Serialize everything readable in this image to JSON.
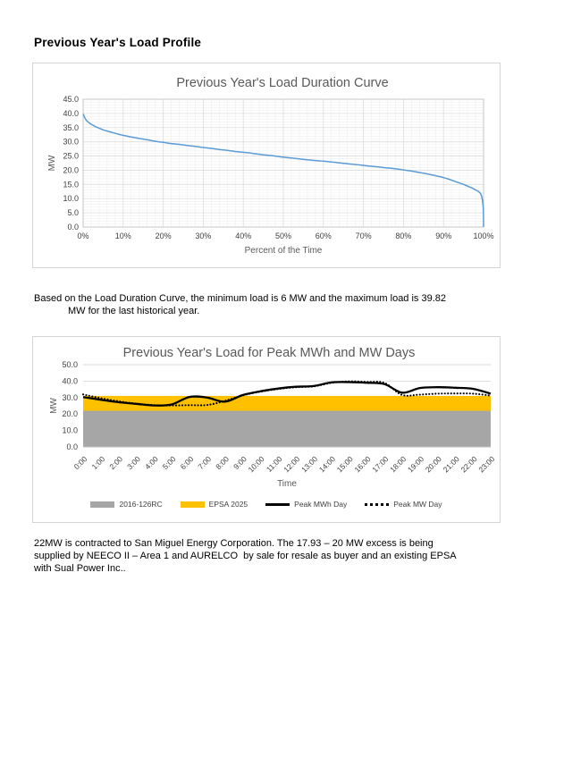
{
  "page": {
    "title": "Previous Year's Load Profile"
  },
  "paragraphs": {
    "p1_lines": [
      "Based on the Load Duration Curve, the minimum load is 6 MW and the maximum load is 39.82",
      "MW for the last historical year."
    ],
    "p2_lines": [
      "22MW is contracted to San Miguel Energy Corporation. The 17.93 – 20 MW excess is being",
      "supplied by NEECO II – Area 1 and AURELCO  by sale for resale as buyer and an existing EPSA",
      "with Sual Power Inc.."
    ]
  },
  "chart_data": [
    {
      "type": "line",
      "title": "Previous Year's Load Duration Curve",
      "xlabel": "Percent of the Time",
      "ylabel": "MW",
      "xlim": [
        0,
        100
      ],
      "ylim": [
        0,
        45
      ],
      "yticks": [
        "45.0",
        "40.0",
        "35.0",
        "30.0",
        "25.0",
        "20.0",
        "15.0",
        "10.0",
        "5.0",
        "0.0"
      ],
      "xticks": [
        "0%",
        "10%",
        "20%",
        "30%",
        "40%",
        "50%",
        "60%",
        "70%",
        "80%",
        "90%",
        "100%"
      ],
      "grid": "major and minor, both axes",
      "legend_position": "none",
      "line_color": "#5B9BD5",
      "min_load_mw": 6,
      "max_load_mw": 39.82,
      "points_pct_mw": [
        [
          0,
          39.82
        ],
        [
          0.3,
          38.9
        ],
        [
          0.6,
          38.0
        ],
        [
          1,
          37.3
        ],
        [
          1.5,
          36.7
        ],
        [
          2,
          36.2
        ],
        [
          2.5,
          35.8
        ],
        [
          3,
          35.4
        ],
        [
          3.5,
          35.1
        ],
        [
          4,
          34.8
        ],
        [
          5,
          34.2
        ],
        [
          6,
          33.8
        ],
        [
          7,
          33.4
        ],
        [
          8,
          33.0
        ],
        [
          9,
          32.6
        ],
        [
          10,
          32.3
        ],
        [
          12,
          31.7
        ],
        [
          14,
          31.2
        ],
        [
          16,
          30.7
        ],
        [
          18,
          30.2
        ],
        [
          20,
          29.8
        ],
        [
          22,
          29.4
        ],
        [
          24,
          29.1
        ],
        [
          26,
          28.7
        ],
        [
          28,
          28.4
        ],
        [
          30,
          28.0
        ],
        [
          32,
          27.7
        ],
        [
          34,
          27.3
        ],
        [
          36,
          27.0
        ],
        [
          38,
          26.6
        ],
        [
          40,
          26.3
        ],
        [
          42,
          26.0
        ],
        [
          44,
          25.6
        ],
        [
          46,
          25.3
        ],
        [
          48,
          25.0
        ],
        [
          50,
          24.6
        ],
        [
          52,
          24.3
        ],
        [
          54,
          24.0
        ],
        [
          56,
          23.7
        ],
        [
          58,
          23.4
        ],
        [
          60,
          23.2
        ],
        [
          62,
          22.9
        ],
        [
          64,
          22.6
        ],
        [
          66,
          22.3
        ],
        [
          68,
          22.0
        ],
        [
          70,
          21.7
        ],
        [
          72,
          21.4
        ],
        [
          74,
          21.1
        ],
        [
          76,
          20.8
        ],
        [
          78,
          20.5
        ],
        [
          80,
          20.1
        ],
        [
          82,
          19.7
        ],
        [
          84,
          19.2
        ],
        [
          86,
          18.7
        ],
        [
          88,
          18.1
        ],
        [
          90,
          17.4
        ],
        [
          91,
          17.0
        ],
        [
          92,
          16.5
        ],
        [
          93,
          16.0
        ],
        [
          94,
          15.5
        ],
        [
          95,
          15.0
        ],
        [
          96,
          14.4
        ],
        [
          97,
          13.8
        ],
        [
          98,
          13.1
        ],
        [
          98.5,
          12.7
        ],
        [
          99,
          12.2
        ],
        [
          99.3,
          11.6
        ],
        [
          99.5,
          10.9
        ],
        [
          99.7,
          9.6
        ],
        [
          99.85,
          7.8
        ],
        [
          99.95,
          6.0
        ],
        [
          100,
          0.0
        ]
      ]
    },
    {
      "type": "area",
      "subtype": "stacked bands with overlay lines",
      "title": "Previous Year's Load for Peak MWh and MW Days",
      "xlabel": "Time",
      "ylabel": "MW",
      "ylim": [
        0,
        50
      ],
      "yticks": [
        "50.0",
        "40.0",
        "30.0",
        "20.0",
        "10.0",
        "0.0"
      ],
      "grid": "major horizontal only",
      "legend_position": "bottom",
      "categories": [
        "0:00",
        "1:00",
        "2:00",
        "3:00",
        "4:00",
        "5:00",
        "6:00",
        "7:00",
        "8:00",
        "9:00",
        "10:00",
        "11:00",
        "12:00",
        "13:00",
        "14:00",
        "15:00",
        "16:00",
        "17:00",
        "18:00",
        "19:00",
        "20:00",
        "21:00",
        "22:00",
        "23:00"
      ],
      "series": [
        {
          "name": "2016-126RC",
          "type": "area-band",
          "color": "#A6A6A6",
          "band_mw": [
            0,
            22
          ]
        },
        {
          "name": "EPSA 2025",
          "type": "area-band",
          "color": "#FFC000",
          "band_mw": [
            22,
            31
          ]
        },
        {
          "name": "Peak MWh Day",
          "type": "line",
          "style": "solid",
          "color": "#000000",
          "values": [
            30.3,
            28.7,
            27.2,
            26.2,
            25.2,
            25.8,
            30.4,
            30.0,
            27.5,
            31.5,
            33.8,
            35.5,
            36.6,
            37.0,
            39.2,
            39.4,
            39.0,
            38.2,
            33.0,
            35.8,
            36.3,
            36.0,
            35.3,
            32.4
          ]
        },
        {
          "name": "Peak MW Day",
          "type": "line",
          "style": "dotted",
          "color": "#000000",
          "values": [
            31.9,
            29.6,
            27.7,
            26.3,
            25.4,
            25.2,
            25.4,
            25.5,
            28.0,
            31.3,
            33.6,
            35.2,
            36.3,
            36.8,
            38.9,
            39.82,
            39.5,
            38.9,
            31.6,
            31.8,
            32.4,
            32.5,
            32.4,
            31.2
          ]
        }
      ]
    }
  ],
  "style": {
    "chart_title_color": "#595959",
    "axis_title_color": "#595959",
    "tick_label_color": "#404040",
    "grid_major_color": "#DCDCDC",
    "grid_minor_color": "#EFEFEF"
  }
}
